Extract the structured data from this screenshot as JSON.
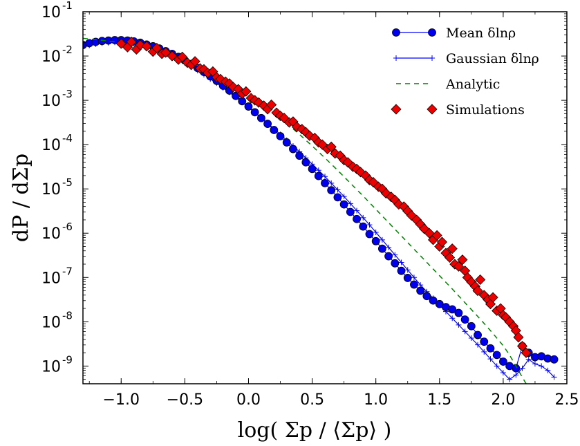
{
  "chart_data": {
    "type": "scatter",
    "xlabel": "log( Σp / ⟨Σp⟩ )",
    "ylabel": "dP / dΣp",
    "xlim": [
      -1.3,
      2.5
    ],
    "ylim_log10": [
      -9.4,
      -1
    ],
    "y_scale": "log",
    "grid": false,
    "legend_position": "top-right",
    "x_ticks": [
      -1.0,
      -0.5,
      0.0,
      0.5,
      1.0,
      1.5,
      2.0,
      2.5
    ],
    "x_tick_labels": [
      "−1.0",
      "−0.5",
      "0.0",
      "0.5",
      "1.0",
      "1.5",
      "2.0",
      "2.5"
    ],
    "y_tick_exponents": [
      -1,
      -2,
      -3,
      -4,
      -5,
      -6,
      -7,
      -8,
      -9
    ],
    "y_tick_base": "10",
    "series": [
      {
        "name": "Mean δlnρ",
        "style": "line-circle",
        "color": "#0000ff",
        "marker_color": "#0000ee",
        "x": [
          -1.3,
          -1.25,
          -1.2,
          -1.15,
          -1.1,
          -1.05,
          -1.0,
          -0.95,
          -0.9,
          -0.85,
          -0.8,
          -0.75,
          -0.7,
          -0.65,
          -0.6,
          -0.55,
          -0.5,
          -0.45,
          -0.4,
          -0.35,
          -0.3,
          -0.25,
          -0.2,
          -0.15,
          -0.1,
          -0.05,
          0.0,
          0.05,
          0.1,
          0.15,
          0.2,
          0.25,
          0.3,
          0.35,
          0.4,
          0.45,
          0.5,
          0.55,
          0.6,
          0.65,
          0.7,
          0.75,
          0.8,
          0.85,
          0.9,
          0.95,
          1.0,
          1.05,
          1.1,
          1.15,
          1.2,
          1.25,
          1.3,
          1.35,
          1.4,
          1.45,
          1.5,
          1.55,
          1.6,
          1.65,
          1.7,
          1.75,
          1.8,
          1.85,
          1.9,
          1.95,
          2.0,
          2.05,
          2.1,
          2.15,
          2.2,
          2.25,
          2.3,
          2.35,
          2.4
        ],
        "y_log10": [
          -1.75,
          -1.71,
          -1.68,
          -1.66,
          -1.65,
          -1.64,
          -1.64,
          -1.65,
          -1.67,
          -1.7,
          -1.74,
          -1.78,
          -1.83,
          -1.89,
          -1.95,
          -2.02,
          -2.1,
          -2.18,
          -2.27,
          -2.36,
          -2.46,
          -2.56,
          -2.67,
          -2.78,
          -2.9,
          -3.02,
          -3.14,
          -3.27,
          -3.4,
          -3.53,
          -3.67,
          -3.81,
          -3.95,
          -4.1,
          -4.25,
          -4.4,
          -4.55,
          -4.71,
          -4.87,
          -5.03,
          -5.19,
          -5.35,
          -5.52,
          -5.68,
          -5.85,
          -6.02,
          -6.18,
          -6.35,
          -6.52,
          -6.68,
          -6.85,
          -7.01,
          -7.16,
          -7.3,
          -7.42,
          -7.52,
          -7.6,
          -7.67,
          -7.72,
          -7.8,
          -7.95,
          -8.1,
          -8.3,
          -8.45,
          -8.6,
          -8.75,
          -8.9,
          -9.0,
          -9.05,
          -8.55,
          -8.7,
          -8.8,
          -8.78,
          -8.83,
          -8.85
        ]
      },
      {
        "name": "Gaussian δlnρ",
        "style": "line-plus",
        "color": "#0000ff",
        "x": [
          -1.3,
          -1.25,
          -1.2,
          -1.15,
          -1.1,
          -1.05,
          -1.0,
          -0.95,
          -0.9,
          -0.85,
          -0.8,
          -0.75,
          -0.7,
          -0.65,
          -0.6,
          -0.55,
          -0.5,
          -0.45,
          -0.4,
          -0.35,
          -0.3,
          -0.25,
          -0.2,
          -0.15,
          -0.1,
          -0.05,
          0.0,
          0.05,
          0.1,
          0.15,
          0.2,
          0.25,
          0.3,
          0.35,
          0.4,
          0.45,
          0.5,
          0.55,
          0.6,
          0.65,
          0.7,
          0.75,
          0.8,
          0.85,
          0.9,
          0.95,
          1.0,
          1.05,
          1.1,
          1.15,
          1.2,
          1.25,
          1.3,
          1.35,
          1.4,
          1.45,
          1.5,
          1.55,
          1.6,
          1.65,
          1.7,
          1.75,
          1.8,
          1.85,
          1.9,
          1.95,
          2.0,
          2.05,
          2.1,
          2.15,
          2.2,
          2.25,
          2.3,
          2.35,
          2.4
        ],
        "y_log10": [
          -1.8,
          -1.76,
          -1.73,
          -1.71,
          -1.7,
          -1.69,
          -1.69,
          -1.7,
          -1.72,
          -1.75,
          -1.79,
          -1.84,
          -1.89,
          -1.95,
          -2.01,
          -2.08,
          -2.16,
          -2.24,
          -2.33,
          -2.42,
          -2.52,
          -2.61,
          -2.72,
          -2.82,
          -2.93,
          -3.04,
          -3.16,
          -3.28,
          -3.4,
          -3.52,
          -3.64,
          -3.77,
          -3.9,
          -4.03,
          -4.16,
          -4.3,
          -4.44,
          -4.58,
          -4.72,
          -4.87,
          -5.02,
          -5.17,
          -5.33,
          -5.49,
          -5.65,
          -5.81,
          -5.98,
          -6.15,
          -6.32,
          -6.49,
          -6.66,
          -6.83,
          -7.0,
          -7.17,
          -7.32,
          -7.47,
          -7.62,
          -7.77,
          -7.92,
          -8.07,
          -8.22,
          -8.37,
          -8.52,
          -8.68,
          -8.84,
          -9.0,
          -9.15,
          -9.3,
          -9.2,
          -9.05,
          -8.85,
          -8.95,
          -9.0,
          -9.1,
          -9.25
        ]
      },
      {
        "name": "Analytic",
        "style": "dashed",
        "color": "#008000",
        "x": [
          -1.3,
          -1.2,
          -1.1,
          -1.0,
          -0.9,
          -0.8,
          -0.7,
          -0.6,
          -0.5,
          -0.4,
          -0.3,
          -0.2,
          -0.1,
          0.0,
          0.1,
          0.2,
          0.3,
          0.4,
          0.5,
          0.6,
          0.7,
          0.8,
          0.9,
          1.0,
          1.1,
          1.2,
          1.3,
          1.4,
          1.5,
          1.6,
          1.7,
          1.8,
          1.9,
          2.0,
          2.05,
          2.1,
          2.15,
          2.2
        ],
        "y_log10": [
          -1.6,
          -1.63,
          -1.66,
          -1.7,
          -1.75,
          -1.81,
          -1.89,
          -1.98,
          -2.09,
          -2.21,
          -2.35,
          -2.5,
          -2.67,
          -2.86,
          -3.06,
          -3.28,
          -3.52,
          -3.77,
          -4.03,
          -4.3,
          -4.58,
          -4.87,
          -5.16,
          -5.46,
          -5.76,
          -6.06,
          -6.36,
          -6.66,
          -6.96,
          -7.26,
          -7.57,
          -7.88,
          -8.2,
          -8.54,
          -8.75,
          -9.0,
          -9.25,
          -9.5
        ]
      },
      {
        "name": "Simulations",
        "style": "diamond",
        "color": "#ee0000",
        "x": [
          -1.0,
          -0.95,
          -0.92,
          -0.88,
          -0.85,
          -0.8,
          -0.75,
          -0.72,
          -0.68,
          -0.65,
          -0.6,
          -0.55,
          -0.52,
          -0.48,
          -0.45,
          -0.42,
          -0.38,
          -0.35,
          -0.32,
          -0.28,
          -0.25,
          -0.22,
          -0.18,
          -0.15,
          -0.12,
          -0.08,
          -0.05,
          -0.02,
          0.02,
          0.05,
          0.08,
          0.12,
          0.15,
          0.18,
          0.22,
          0.25,
          0.28,
          0.32,
          0.35,
          0.38,
          0.42,
          0.45,
          0.48,
          0.52,
          0.55,
          0.58,
          0.62,
          0.65,
          0.68,
          0.72,
          0.75,
          0.78,
          0.82,
          0.85,
          0.88,
          0.92,
          0.95,
          0.98,
          1.02,
          1.05,
          1.08,
          1.12,
          1.15,
          1.18,
          1.22,
          1.25,
          1.28,
          1.32,
          1.35,
          1.38,
          1.42,
          1.45,
          1.48,
          1.5,
          1.52,
          1.55,
          1.58,
          1.6,
          1.62,
          1.65,
          1.68,
          1.7,
          1.72,
          1.75,
          1.78,
          1.8,
          1.82,
          1.85,
          1.88,
          1.9,
          1.92,
          1.95,
          1.98,
          2.0,
          2.02,
          2.05,
          2.08,
          2.1,
          2.12,
          2.15,
          2.18
        ],
        "y_log10": [
          -1.72,
          -1.8,
          -1.68,
          -1.85,
          -1.75,
          -1.78,
          -1.9,
          -1.82,
          -1.95,
          -1.92,
          -2.0,
          -2.08,
          -2.02,
          -2.15,
          -2.2,
          -2.12,
          -2.28,
          -2.3,
          -2.38,
          -2.35,
          -2.48,
          -2.52,
          -2.58,
          -2.62,
          -2.7,
          -2.75,
          -2.85,
          -2.8,
          -2.95,
          -3.0,
          -3.05,
          -3.12,
          -3.2,
          -3.1,
          -3.28,
          -3.35,
          -3.4,
          -3.5,
          -3.48,
          -3.6,
          -3.65,
          -3.72,
          -3.8,
          -3.85,
          -3.95,
          -4.0,
          -4.1,
          -4.05,
          -4.2,
          -4.25,
          -4.35,
          -4.4,
          -4.5,
          -4.55,
          -4.62,
          -4.7,
          -4.8,
          -4.85,
          -4.95,
          -5.0,
          -5.1,
          -5.18,
          -5.25,
          -5.35,
          -5.4,
          -5.5,
          -5.6,
          -5.7,
          -5.8,
          -5.9,
          -6.0,
          -6.15,
          -6.05,
          -6.3,
          -6.2,
          -6.45,
          -6.55,
          -6.35,
          -6.7,
          -6.75,
          -6.6,
          -6.85,
          -7.0,
          -7.1,
          -7.2,
          -7.3,
          -7.05,
          -7.4,
          -7.5,
          -7.6,
          -7.45,
          -7.75,
          -7.7,
          -7.85,
          -7.9,
          -8.0,
          -8.1,
          -8.2,
          -8.35,
          -8.55,
          -8.7
        ]
      }
    ]
  }
}
